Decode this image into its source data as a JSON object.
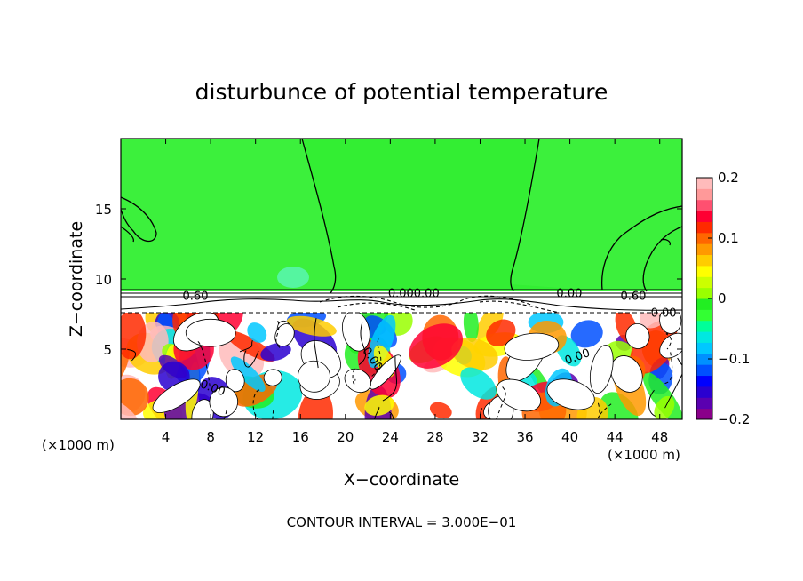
{
  "chart_data": {
    "type": "heatmap",
    "title": "disturbunce of potential temperature",
    "xlabel": "X−coordinate",
    "ylabel": "Z−coordinate",
    "x_unit": "(×1000 m)",
    "x_unit_right": "(×1000 m)",
    "xlim": [
      0,
      50
    ],
    "ylim": [
      0,
      20
    ],
    "x_ticks": [
      4,
      8,
      12,
      16,
      20,
      24,
      28,
      32,
      36,
      40,
      44,
      48
    ],
    "x_tick_labels": [
      "4",
      "8",
      "12",
      "16",
      "20",
      "24",
      "28",
      "32",
      "36",
      "40",
      "44",
      "48"
    ],
    "y_ticks": [
      5,
      10,
      15
    ],
    "y_tick_labels": [
      "5",
      "10",
      "15"
    ],
    "colorbar": {
      "min": -0.2,
      "max": 0.2,
      "tick_values": [
        0.2,
        0.1,
        0,
        -0.1,
        -0.2
      ],
      "tick_labels": [
        "0.2",
        "0.1",
        "0",
        "−0.1",
        "−0.2"
      ],
      "colors": [
        "#8a008a",
        "#5a00b0",
        "#2a00d0",
        "#0000ff",
        "#0050ff",
        "#0090ff",
        "#00c8ff",
        "#00e8e0",
        "#00ff99",
        "#33ff33",
        "#22ee22",
        "#99ff00",
        "#ccff00",
        "#ffff00",
        "#ffcc00",
        "#ff9900",
        "#ff6600",
        "#ff2a00",
        "#ff0033",
        "#ff5070",
        "#ff9999",
        "#ffbbbb"
      ]
    },
    "contour_interval_text": "CONTOUR INTERVAL = 3.000E−01",
    "contour_labels": [
      "0.60",
      "0.000.00",
      "0.00",
      "0.60",
      "0.00",
      "0.00",
      "0.00",
      "0.00"
    ],
    "regions": {
      "upper_stable_layer": {
        "z_range": [
          9,
          20
        ],
        "value": 0.0
      },
      "inversion_band": {
        "z_range": [
          7.6,
          9.0
        ]
      },
      "turbulent_layer": {
        "z_range": [
          0,
          7.6
        ]
      }
    },
    "grid": false,
    "legend": "colorbar-right"
  }
}
